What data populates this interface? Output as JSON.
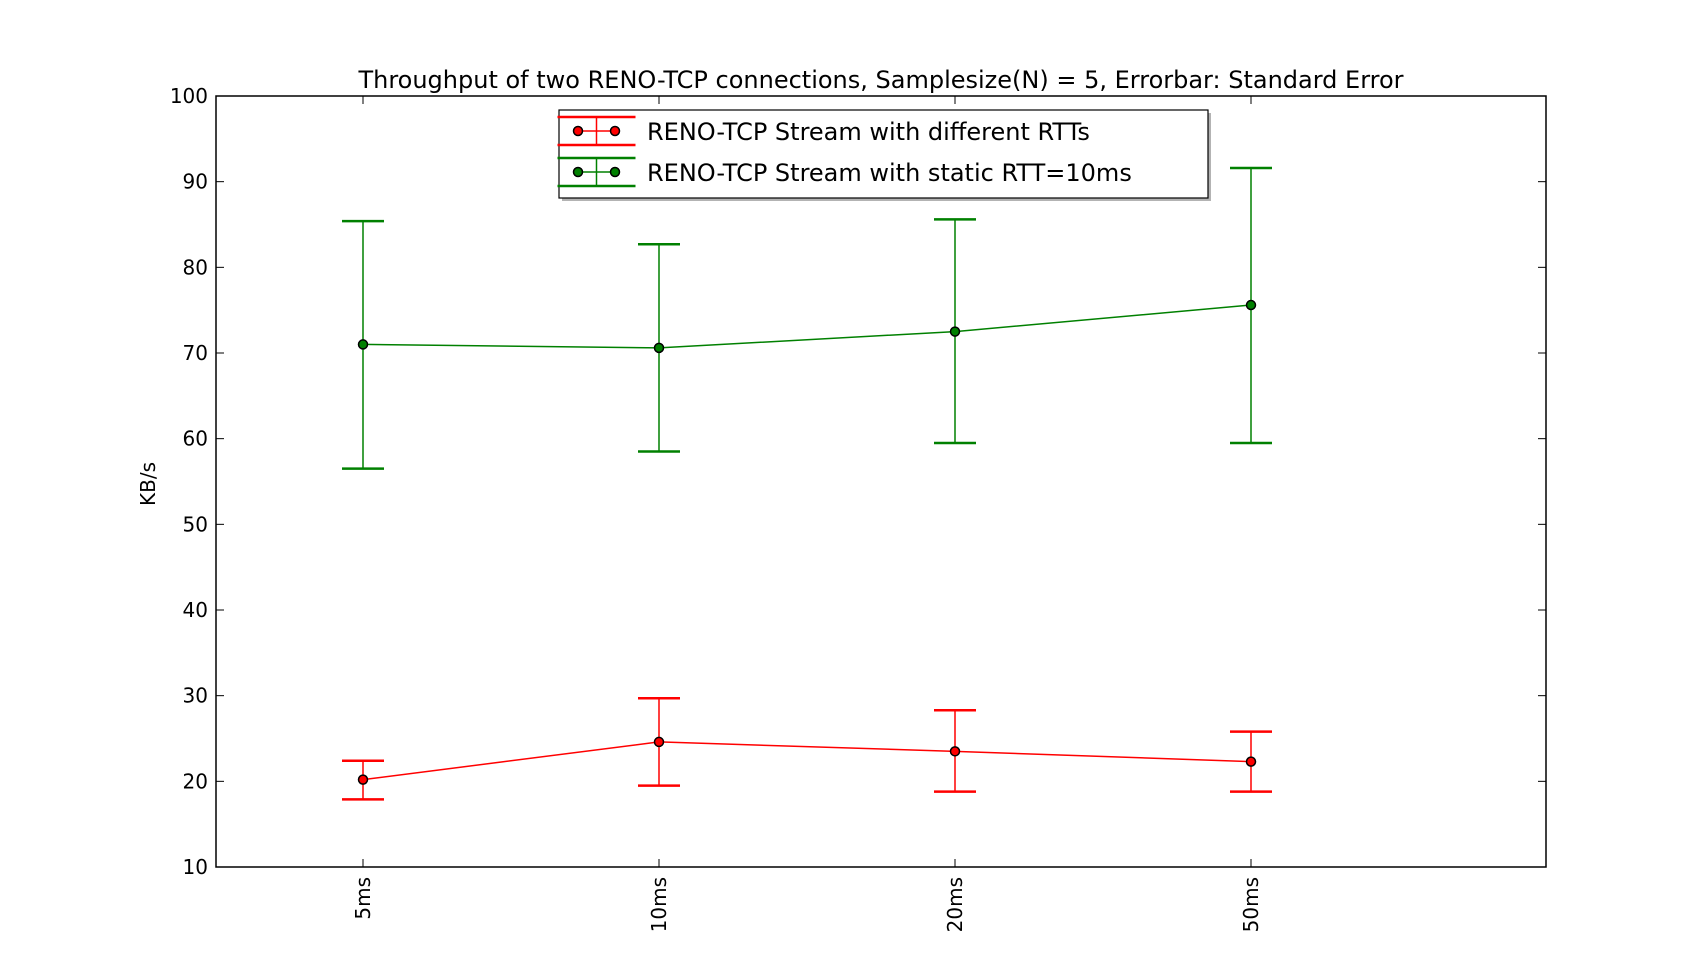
{
  "chart_data": {
    "type": "line",
    "title": "Throughput of two RENO-TCP connections, Samplesize(N) = 5, Errorbar: Standard Error",
    "xlabel": "",
    "ylabel": "KB/s",
    "categories": [
      "5ms",
      "10ms",
      "20ms",
      "50ms"
    ],
    "ylim": [
      10,
      100
    ],
    "yticks": [
      10,
      20,
      30,
      40,
      50,
      60,
      70,
      80,
      90,
      100
    ],
    "grid": false,
    "legend_position": "top-center",
    "error_bars": "standard error",
    "series": [
      {
        "name": "RENO-TCP Stream with different RTTs",
        "color": "#ff0000",
        "values": [
          20.2,
          24.6,
          23.5,
          22.3
        ],
        "error_low": [
          17.9,
          19.5,
          18.8,
          18.8
        ],
        "error_high": [
          22.4,
          29.7,
          28.3,
          25.8
        ]
      },
      {
        "name": "RENO-TCP Stream with static RTT=10ms",
        "color": "#008000",
        "values": [
          71.0,
          70.6,
          72.5,
          75.6
        ],
        "error_low": [
          56.5,
          58.5,
          59.5,
          59.5
        ],
        "error_high": [
          85.4,
          82.7,
          85.6,
          91.6
        ]
      }
    ]
  }
}
